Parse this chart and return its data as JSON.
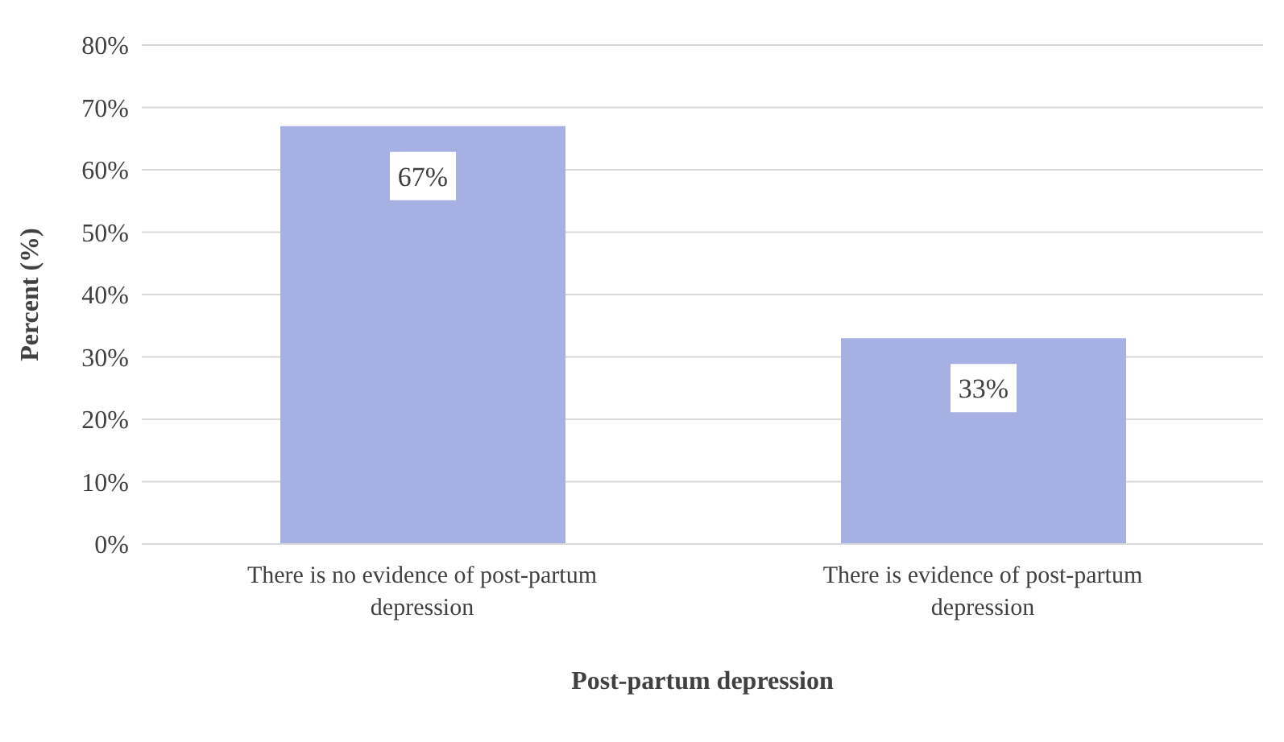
{
  "chart_data": {
    "type": "bar",
    "xlabel": "Post-partum depression",
    "ylabel": "Percent (%)",
    "categories": [
      "There is no evidence of post-partum depression",
      "There is evidence of post-partum depression"
    ],
    "values": [
      67,
      33
    ],
    "value_labels": [
      "67%",
      "33%"
    ],
    "color": "#a6b0e2",
    "ylim": [
      0,
      80
    ],
    "yticks": [
      {
        "value": 0,
        "label": "0%"
      },
      {
        "value": 10,
        "label": "10%"
      },
      {
        "value": 20,
        "label": "20%"
      },
      {
        "value": 30,
        "label": "30%"
      },
      {
        "value": 40,
        "label": "40%"
      },
      {
        "value": 50,
        "label": "50%"
      },
      {
        "value": 60,
        "label": "60%"
      },
      {
        "value": 70,
        "label": "70%"
      },
      {
        "value": 80,
        "label": "80%"
      }
    ],
    "grid": "y",
    "legend": false
  }
}
